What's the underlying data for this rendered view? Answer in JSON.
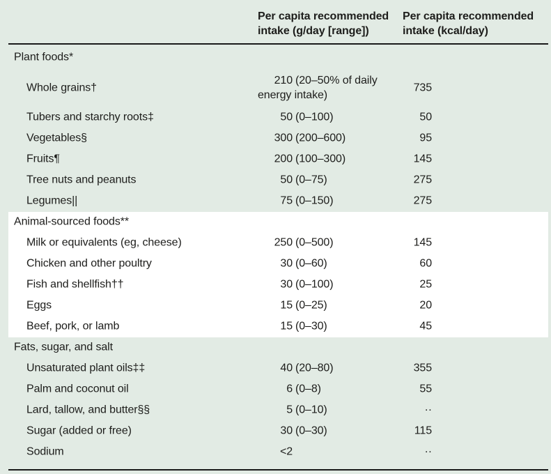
{
  "header": {
    "col_g": "Per capita recommended intake (g/day [range])",
    "col_kcal": "Per capita recommended intake (kcal/day)"
  },
  "colors": {
    "background": "#e2ebe4",
    "highlight_band": "#ffffff",
    "rule": "#1a1a1a",
    "text": "#1d1d1b"
  },
  "missing_marker": "··",
  "rows": [
    {
      "type": "section",
      "label": "Plant foods*",
      "g_num": "",
      "g_range": "",
      "kcal": ""
    },
    {
      "type": "item",
      "label": "Whole grains†",
      "g_num": "210",
      "g_range": "(20–50% of daily energy intake)",
      "kcal": "735"
    },
    {
      "type": "item",
      "label": "Tubers and starchy roots‡",
      "g_num": "50",
      "g_range": "(0–100)",
      "kcal": "50"
    },
    {
      "type": "item",
      "label": "Vegetables§",
      "g_num": "300",
      "g_range": "(200–600)",
      "kcal": "95"
    },
    {
      "type": "item",
      "label": "Fruits¶",
      "g_num": "200",
      "g_range": "(100–300)",
      "kcal": "145"
    },
    {
      "type": "item",
      "label": "Tree nuts and peanuts",
      "g_num": "50",
      "g_range": "(0–75)",
      "kcal": "275"
    },
    {
      "type": "item",
      "label": "Legumes||",
      "g_num": "75",
      "g_range": "(0–150)",
      "kcal": "275"
    },
    {
      "type": "section",
      "label": "Animal-sourced foods**",
      "g_num": "",
      "g_range": "",
      "kcal": ""
    },
    {
      "type": "item",
      "label": "Milk or equivalents (eg, cheese)",
      "g_num": "250",
      "g_range": "(0–500)",
      "kcal": "145"
    },
    {
      "type": "item",
      "label": "Chicken and other poultry",
      "g_num": "30",
      "g_range": "(0–60)",
      "kcal": "60"
    },
    {
      "type": "item",
      "label": "Fish and shellfish††",
      "g_num": "30",
      "g_range": "(0–100)",
      "kcal": "25"
    },
    {
      "type": "item",
      "label": "Eggs",
      "g_num": "15",
      "g_range": "(0–25)",
      "kcal": "20"
    },
    {
      "type": "item",
      "label": "Beef, pork, or lamb",
      "g_num": "15",
      "g_range": "(0–30)",
      "kcal": "45"
    },
    {
      "type": "section",
      "label": "Fats, sugar, and salt",
      "g_num": "",
      "g_range": "",
      "kcal": ""
    },
    {
      "type": "item",
      "label": "Unsaturated plant oils‡‡",
      "g_num": "40",
      "g_range": "(20–80)",
      "kcal": "355"
    },
    {
      "type": "item",
      "label": "Palm and coconut oil",
      "g_num": "6",
      "g_range": "(0–8)",
      "kcal": "55"
    },
    {
      "type": "item",
      "label": "Lard, tallow, and butter§§",
      "g_num": "5",
      "g_range": "(0–10)",
      "kcal": "··"
    },
    {
      "type": "item",
      "label": "Sugar (added or free)",
      "g_num": "30",
      "g_range": "(0–30)",
      "kcal": "115"
    },
    {
      "type": "item",
      "label": "Sodium",
      "g_num": "<2",
      "g_range": "",
      "kcal": "··"
    }
  ]
}
